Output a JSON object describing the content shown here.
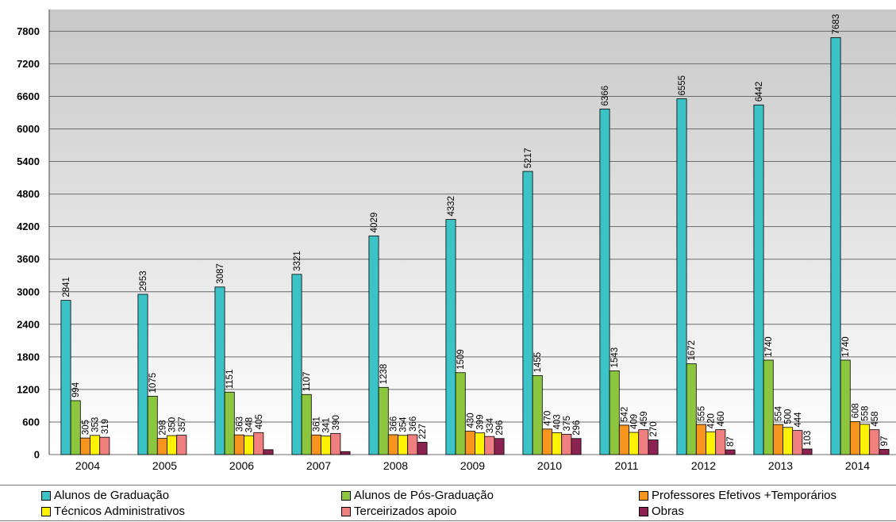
{
  "chart_data": {
    "type": "bar",
    "categories": [
      "2004",
      "2005",
      "2006",
      "2007",
      "2008",
      "2009",
      "2010",
      "2011",
      "2012",
      "2013",
      "2014"
    ],
    "ylim": [
      0,
      7800
    ],
    "yticks": [
      0,
      600,
      1200,
      1800,
      2400,
      3000,
      3600,
      4200,
      4800,
      5400,
      6000,
      6600,
      7200,
      7800
    ],
    "grid": true,
    "legend_position": "bottom",
    "series": [
      {
        "name": "Alunos de Graduação",
        "color": "#3CC3C8",
        "values": [
          2841,
          2953,
          3087,
          3321,
          4029,
          4332,
          5217,
          6366,
          6555,
          6442,
          7683
        ],
        "labels": [
          "2841",
          "2953",
          "3087",
          "3321",
          "4029",
          "4332",
          "5217",
          "6366",
          "6555",
          "6442",
          "7683"
        ]
      },
      {
        "name": "Alunos de Pós-Graduação",
        "color": "#8CC63F",
        "values": [
          994,
          1075,
          1151,
          1107,
          1238,
          1509,
          1455,
          1543,
          1672,
          1740,
          1740
        ],
        "labels": [
          "994",
          "1075",
          "1151",
          "1107",
          "1238",
          "1509",
          "1455",
          "1543",
          "1672",
          "1740",
          "1740"
        ]
      },
      {
        "name": "Professores Efetivos +Temporários",
        "color": "#F7941D",
        "values": [
          305,
          298,
          363,
          361,
          366,
          430,
          470,
          542,
          555,
          554,
          608
        ],
        "labels": [
          "305",
          "298",
          "363",
          "361",
          "366",
          "430",
          "470",
          "542",
          "555",
          "554",
          "608"
        ]
      },
      {
        "name": "Técnicos Administrativos",
        "color": "#FFF200",
        "values": [
          353,
          350,
          348,
          341,
          354,
          399,
          403,
          409,
          420,
          500,
          558
        ],
        "labels": [
          "353",
          "350",
          "348",
          "341",
          "354",
          "399",
          "403",
          "409",
          "420",
          "500",
          "558"
        ]
      },
      {
        "name": "Terceirizados apoio",
        "color": "#F08080",
        "values": [
          319,
          357,
          405,
          390,
          366,
          334,
          375,
          459,
          460,
          444,
          458
        ],
        "labels": [
          "319",
          "357",
          "405",
          "390",
          "366",
          "334",
          "375",
          "459",
          "460",
          "444",
          "458"
        ]
      },
      {
        "name": "Obras",
        "color": "#8B2252",
        "values": [
          0,
          0,
          90,
          55,
          227,
          296,
          296,
          270,
          87,
          103,
          97
        ],
        "labels": [
          "",
          "",
          "",
          "",
          "227",
          "296",
          "296",
          "270",
          "87",
          "103",
          "97"
        ]
      }
    ]
  }
}
